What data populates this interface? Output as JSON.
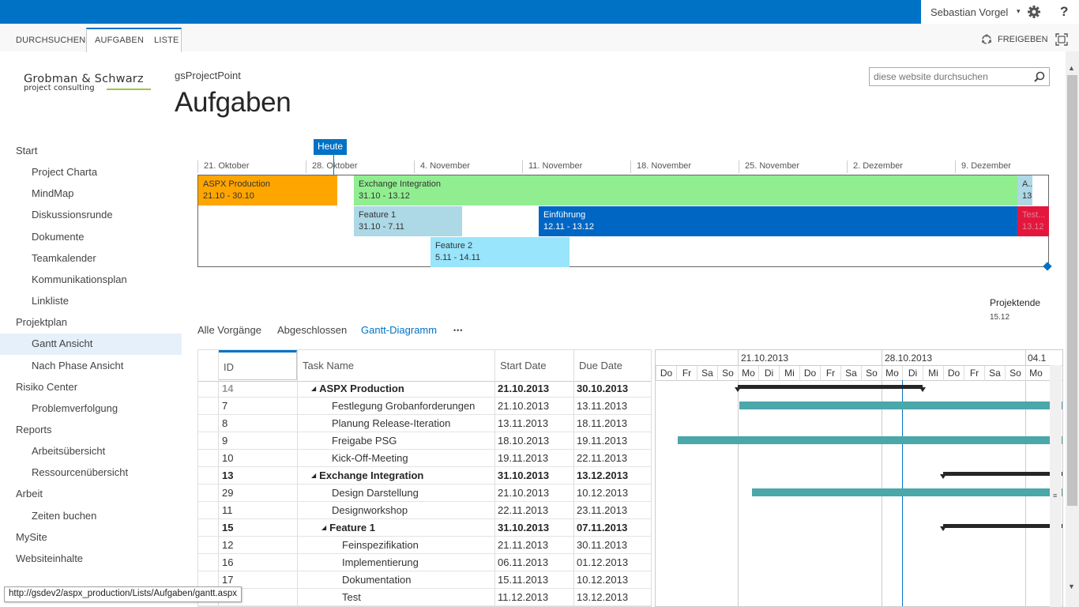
{
  "topbar": {
    "user": "Sebastian Vorgel",
    "user_caret": "▾",
    "help": "?"
  },
  "ribbon": {
    "tabs": [
      {
        "label": "DURCHSUCHEN"
      },
      {
        "label": "AUFGABEN"
      },
      {
        "label": "LISTE"
      }
    ],
    "share_label": "FREIGEBEN"
  },
  "logo": {
    "name": "Grobman & Schwarz",
    "sub": "project consulting"
  },
  "header": {
    "site": "gsProjectPoint",
    "title": "Aufgaben"
  },
  "search": {
    "placeholder": "diese website durchsuchen"
  },
  "nav": {
    "items": [
      {
        "label": "Start",
        "level": 1
      },
      {
        "label": "Project Charta",
        "level": 2
      },
      {
        "label": "MindMap",
        "level": 2
      },
      {
        "label": "Diskussionsrunde",
        "level": 2
      },
      {
        "label": "Dokumente",
        "level": 2
      },
      {
        "label": "Teamkalender",
        "level": 2
      },
      {
        "label": "Kommunikationsplan",
        "level": 2
      },
      {
        "label": "Linkliste",
        "level": 2
      },
      {
        "label": "Projektplan",
        "level": 1
      },
      {
        "label": "Gantt Ansicht",
        "level": 2,
        "active": true
      },
      {
        "label": "Nach Phase Ansicht",
        "level": 2
      },
      {
        "label": "Risiko Center",
        "level": 1
      },
      {
        "label": "Problemverfolgung",
        "level": 2
      },
      {
        "label": "Reports",
        "level": 1
      },
      {
        "label": "Arbeitsübersicht",
        "level": 2
      },
      {
        "label": "Ressourcenübersicht",
        "level": 2
      },
      {
        "label": "Arbeit",
        "level": 1
      },
      {
        "label": "Zeiten buchen",
        "level": 2
      },
      {
        "label": "MySite",
        "level": 1
      },
      {
        "label": "Websiteinhalte",
        "level": 1
      }
    ]
  },
  "timeline": {
    "today_label": "Heute",
    "ticks": [
      "21. Oktober",
      "28. Oktober",
      "4. November",
      "11. November",
      "18. November",
      "25. November",
      "2. Dezember",
      "9. Dezember"
    ],
    "bars": [
      {
        "name": "ASPX Production",
        "dates": "21.10 - 30.10",
        "color": "#ffa500",
        "text_color": "#333333"
      },
      {
        "name": "Exchange Integration",
        "dates": "31.10 - 13.12",
        "color": "#90ee90",
        "text_color": "#333333"
      },
      {
        "name": "A...",
        "dates": "13.",
        "color": "#add8e6",
        "text_color": "#333333"
      },
      {
        "name": "Feature 1",
        "dates": "31.10 - 7.11",
        "color": "#add8e6",
        "text_color": "#333333"
      },
      {
        "name": "Einführung",
        "dates": "12.11 - 13.12",
        "color": "#0066c4",
        "text_color": "#ffffff"
      },
      {
        "name": "Test...",
        "dates": "13.12",
        "color": "#e3173e",
        "text_color": "#e37f8f"
      },
      {
        "name": "Feature 2",
        "dates": "5.11 - 14.11",
        "color": "#99e5fb",
        "text_color": "#333333"
      }
    ],
    "milestone": {
      "label": "Projektende",
      "date": "15.12"
    }
  },
  "views": {
    "items": [
      {
        "label": "Alle Vorgänge"
      },
      {
        "label": "Abgeschlossen"
      },
      {
        "label": "Gantt-Diagramm",
        "selected": true
      }
    ],
    "more": "•••"
  },
  "grid": {
    "columns": {
      "id": "ID",
      "task": "Task Name",
      "start": "Start Date",
      "due": "Due Date"
    },
    "rows": [
      {
        "id": "14",
        "task": "ASPX Production",
        "start": "21.10.2013",
        "due": "30.10.2013",
        "summary": true,
        "indent": 0
      },
      {
        "id": "7",
        "task": "Festlegung Grobanforderungen",
        "start": "21.10.2013",
        "due": "13.11.2013",
        "indent": 1
      },
      {
        "id": "8",
        "task": "Planung Release-Iteration",
        "start": "13.11.2013",
        "due": "18.11.2013",
        "indent": 1
      },
      {
        "id": "9",
        "task": "Freigabe PSG",
        "start": "18.10.2013",
        "due": "19.11.2013",
        "indent": 1
      },
      {
        "id": "10",
        "task": "Kick-Off-Meeting",
        "start": "19.11.2013",
        "due": "22.11.2013",
        "indent": 1
      },
      {
        "id": "13",
        "task": "Exchange Integration",
        "start": "31.10.2013",
        "due": "13.12.2013",
        "summary": true,
        "indent": 0
      },
      {
        "id": "29",
        "task": "Design Darstellung",
        "start": "21.10.2013",
        "due": "10.12.2013",
        "indent": 1
      },
      {
        "id": "11",
        "task": "Designworkshop",
        "start": "22.11.2013",
        "due": "23.11.2013",
        "indent": 1
      },
      {
        "id": "15",
        "task": "Feature 1",
        "start": "31.10.2013",
        "due": "07.11.2013",
        "summary": true,
        "indent": 1
      },
      {
        "id": "12",
        "task": "Feinspezifikation",
        "start": "21.11.2013",
        "due": "30.11.2013",
        "indent": 2
      },
      {
        "id": "16",
        "task": "Implementierung",
        "start": "06.11.2013",
        "due": "01.12.2013",
        "indent": 2
      },
      {
        "id": "17",
        "task": "Dokumentation",
        "start": "15.11.2013",
        "due": "10.12.2013",
        "indent": 2
      },
      {
        "id": "",
        "task": "Test",
        "start": "11.12.2013",
        "due": "13.12.2013",
        "indent": 2
      }
    ]
  },
  "gantt": {
    "dates": [
      "21.10.2013",
      "28.10.2013",
      "04.1"
    ],
    "days": [
      "Do",
      "Fr",
      "Sa",
      "So",
      "Mo",
      "Di",
      "Mi",
      "Do",
      "Fr",
      "Sa",
      "So",
      "Mo",
      "Di",
      "Mi",
      "Do",
      "Fr",
      "Sa",
      "So",
      "Mo"
    ],
    "bar_color": "#4aa7aa",
    "summary_color": "#262626"
  },
  "status": {
    "url": "http://gsdev2/aspx_production/Lists/Aufgaben/gantt.aspx"
  },
  "colors": {
    "accent": "#0072c6"
  }
}
